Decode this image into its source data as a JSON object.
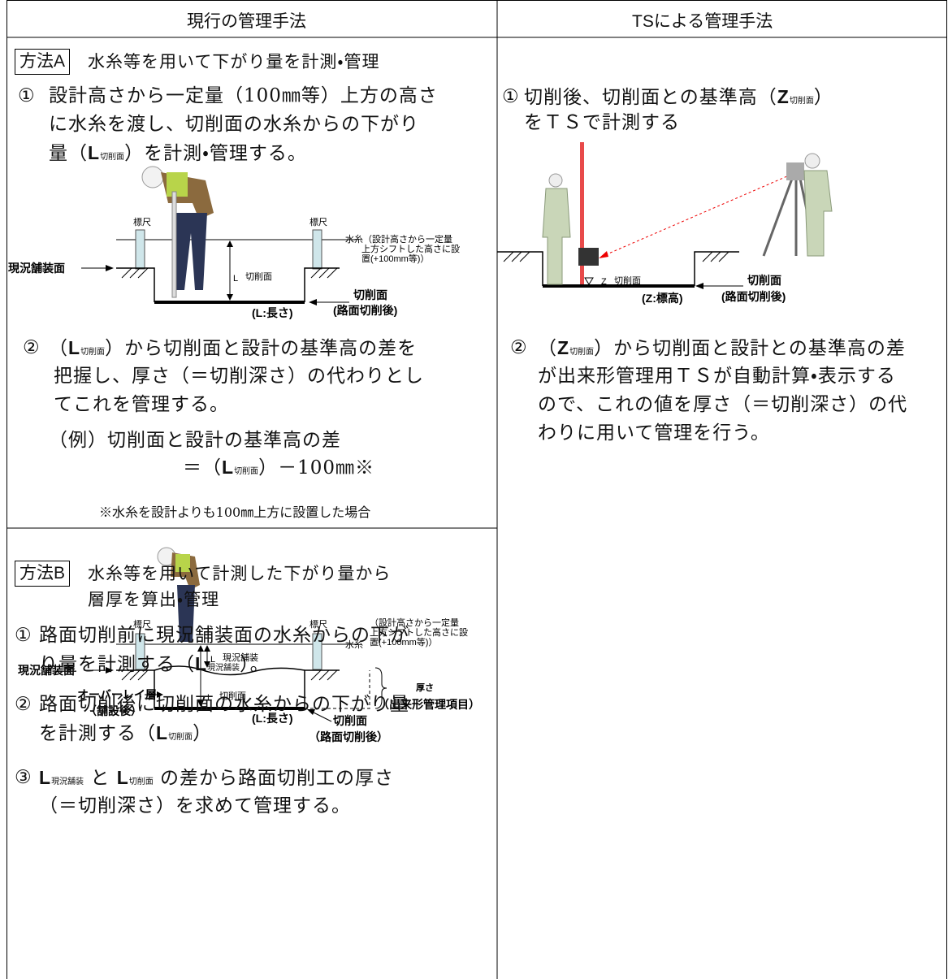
{
  "header": {
    "left": "現行の管理手法",
    "right": "TSによる管理手法"
  },
  "method_a": {
    "badge": "方法A",
    "title": "水糸等を用いて下がり量を計測・管理",
    "step1": {
      "num": "①",
      "lines": [
        [
          "設計高さから一定量（100㎜等）上方の高さ"
        ],
        [
          "に水糸を渡し、切削面の水糸からの下がり"
        ],
        [
          "量（",
          "L",
          "切削面",
          "）を計測・管理する。"
        ]
      ]
    },
    "figure": {
      "staff_left": "標尺",
      "staff_right": "標尺",
      "string": [
        "水糸（設計高さから一定量",
        "上方シフトした高さに設",
        "置(+100mm等)）"
      ],
      "existing_surface": "現況舗装面",
      "l_label": [
        "L",
        "切削面"
      ],
      "cut_surface": "切削面",
      "cut_note": "(路面切削後)",
      "length_note": "(L:長さ)"
    },
    "step2": {
      "num": "②",
      "lines": [
        [
          "（",
          "L",
          "切削面",
          "）から切削面と設計の基準高の差を"
        ],
        [
          "把握し、厚さ（＝切削深さ）の代わりとし"
        ],
        [
          "てこれを管理する。"
        ]
      ]
    },
    "example": [
      [
        "（例）切削面と設計の基準高の差"
      ],
      [
        "＝（",
        "L",
        "切削面",
        "）－100㎜※"
      ]
    ],
    "note": "※水糸を設計よりも100㎜上方に設置した場合"
  },
  "method_b": {
    "badge": "方法B",
    "title": [
      "水糸等を用いて計測した下がり量から",
      "層厚を算出・管理"
    ],
    "step1": {
      "num": "①",
      "lines": [
        [
          "路面切削前に現況舗装面の水糸からの下が"
        ],
        [
          "り量を計測する（",
          "L",
          "現況舗装",
          "）。"
        ]
      ]
    },
    "step2": {
      "num": "②",
      "lines": [
        [
          "路面切削後に切削面の水糸からの下がり量"
        ],
        [
          "を計測する（",
          "L",
          "切削面",
          "）"
        ]
      ]
    },
    "step3": {
      "num": "③",
      "lines": [
        [
          "L",
          "現況舗装",
          " と ",
          "L",
          "切削面",
          " の差から路面切削工の厚さ"
        ],
        [
          "（＝切削深さ）を求めて管理する。"
        ]
      ]
    },
    "figure": {
      "staff_left": "標尺",
      "staff_right": "標尺",
      "string": [
        "水糸",
        "（設計高さから一定量",
        "上方シフトした高さに設",
        "置(+100mm等)）"
      ],
      "existing_surface": "現況舗装面",
      "l_existing": [
        "L",
        "現況舗装"
      ],
      "overlay": [
        "オーバーレイ層",
        "（舗設後）"
      ],
      "l_cut": [
        "L",
        "切削面"
      ],
      "length_note": "(L:長さ)",
      "cut_surface": "切削面",
      "cut_note": "（路面切削後）",
      "thickness": "厚さ",
      "thickness_note": "（出来形管理項目）"
    }
  },
  "ts": {
    "step1": {
      "num": "①",
      "lines": [
        [
          "切削後、切削面との基準高（",
          "Z",
          "切削面",
          "）"
        ],
        [
          "をＴＳで計測する"
        ]
      ]
    },
    "figure": {
      "z_label": [
        "Z",
        "切削面"
      ],
      "z_note": "(Z:標高)",
      "cut_surface": "切削面",
      "cut_note": "(路面切削後)"
    },
    "step2": {
      "num": "②",
      "lines": [
        [
          "（",
          "Z",
          "切削面",
          "）から切削面と設計との基準高の差"
        ],
        [
          "が出来形管理用ＴＳが自動計算・表示する"
        ],
        [
          "ので、これの値を厚さ（＝切削深さ）の代"
        ],
        [
          "わりに用いて管理を行う。"
        ]
      ]
    }
  }
}
